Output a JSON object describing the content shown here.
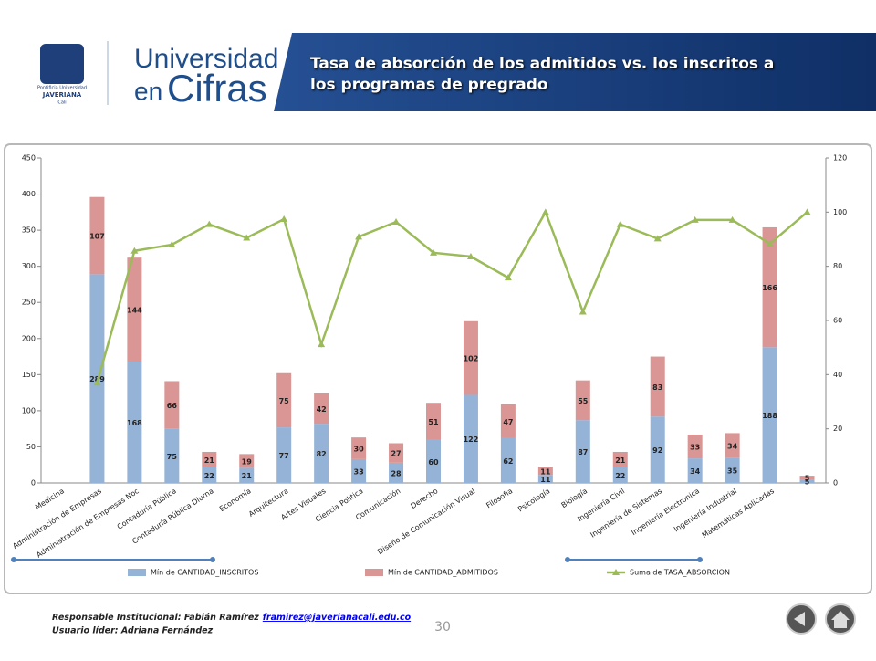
{
  "header": {
    "logo_lines": [
      "Pontificia Universidad",
      "JAVERIANA",
      "Cali"
    ],
    "brand_top": "Universidad",
    "brand_en": "en",
    "brand_cifras": "Cifras",
    "title_lines": [
      "Tasa de absorción de los admitidos vs. los inscritos a",
      "los programas de pregrado"
    ]
  },
  "chart_data": {
    "type": "bar",
    "stacked": true,
    "categories": [
      "Medicina",
      "Administración de Empresas",
      "Administración de Empresas Noc",
      "Contaduría Pública",
      "Contaduría Pública Diurna",
      "Economía",
      "Arquitectura",
      "Artes Visuales",
      "Ciencia Política",
      "Comunicación",
      "Derecho",
      "Diseño de Comunicación Visual",
      "Filosofía",
      "Psicología",
      "Biología",
      "Ingeniería Civil",
      "Ingeniería de Sistemas",
      "Ingeniería Electrónica",
      "Ingeniería Industrial",
      "Matemáticas Aplicadas",
      null
    ],
    "series": [
      {
        "name": "Mín de CANTIDAD_INSCRITOS",
        "type": "bar",
        "color": "#95b3d7",
        "values": [
          null,
          289,
          168,
          75,
          22,
          21,
          77,
          82,
          33,
          28,
          60,
          122,
          62,
          11,
          87,
          22,
          92,
          34,
          35,
          188,
          5
        ]
      },
      {
        "name": "Mín de CANTIDAD_ADMITIDOS",
        "type": "bar",
        "color": "#d99694",
        "values": [
          null,
          107,
          144,
          66,
          21,
          19,
          75,
          42,
          30,
          27,
          51,
          102,
          47,
          11,
          55,
          21,
          83,
          33,
          34,
          166,
          5
        ]
      },
      {
        "name": "Suma de TASA_ABSORCION",
        "type": "line",
        "axis": "y2",
        "color": "#9bbb59",
        "values": [
          null,
          37.0,
          85.7,
          88.0,
          95.5,
          90.5,
          97.4,
          51.2,
          90.9,
          96.4,
          85.0,
          83.6,
          75.8,
          100,
          63.2,
          95.5,
          90.2,
          97.1,
          97.1,
          88.3,
          100
        ]
      }
    ],
    "ylim": [
      0,
      450
    ],
    "yticks": [
      0,
      50,
      100,
      150,
      200,
      250,
      300,
      350,
      400,
      450
    ],
    "y2lim": [
      0,
      120
    ],
    "y2ticks": [
      0,
      20,
      40,
      60,
      80,
      100,
      120
    ],
    "data_labels": true,
    "legend": "bottom"
  },
  "footer": {
    "responsible": "Responsable Institucional: Fabián Ramírez",
    "email": "framirez@javerianacali.edu.co",
    "leader": "Usuario líder: Adriana Fernández",
    "page": "30"
  }
}
